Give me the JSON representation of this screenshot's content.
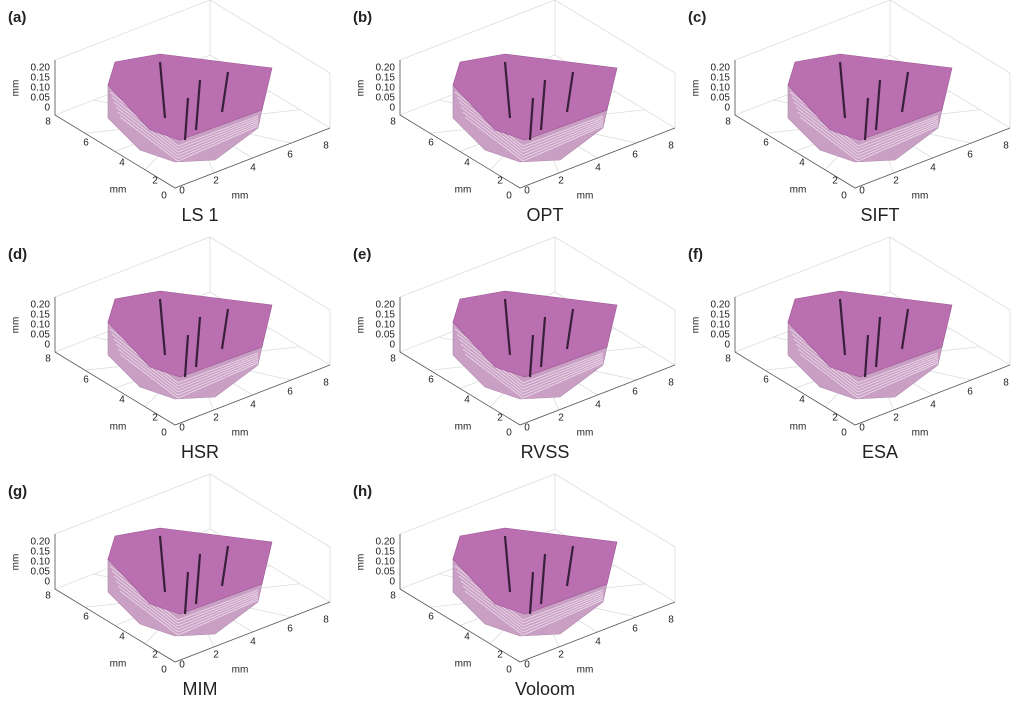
{
  "panels": [
    {
      "letter": "(a)",
      "label": "LS 1"
    },
    {
      "letter": "(b)",
      "label": "OPT"
    },
    {
      "letter": "(c)",
      "label": "SIFT"
    },
    {
      "letter": "(d)",
      "label": "HSR"
    },
    {
      "letter": "(e)",
      "label": "RVSS"
    },
    {
      "letter": "(f)",
      "label": "ESA"
    },
    {
      "letter": "(g)",
      "label": "MIM"
    },
    {
      "letter": "(h)",
      "label": "Voloom"
    }
  ],
  "axes": {
    "z_ticks": [
      "0.20",
      "0.15",
      "0.10",
      "0.05",
      "0"
    ],
    "left_ticks": [
      "8",
      "6",
      "4",
      "2",
      "0"
    ],
    "right_ticks": [
      "0",
      "2",
      "4",
      "6",
      "8"
    ],
    "unit": "mm"
  }
}
